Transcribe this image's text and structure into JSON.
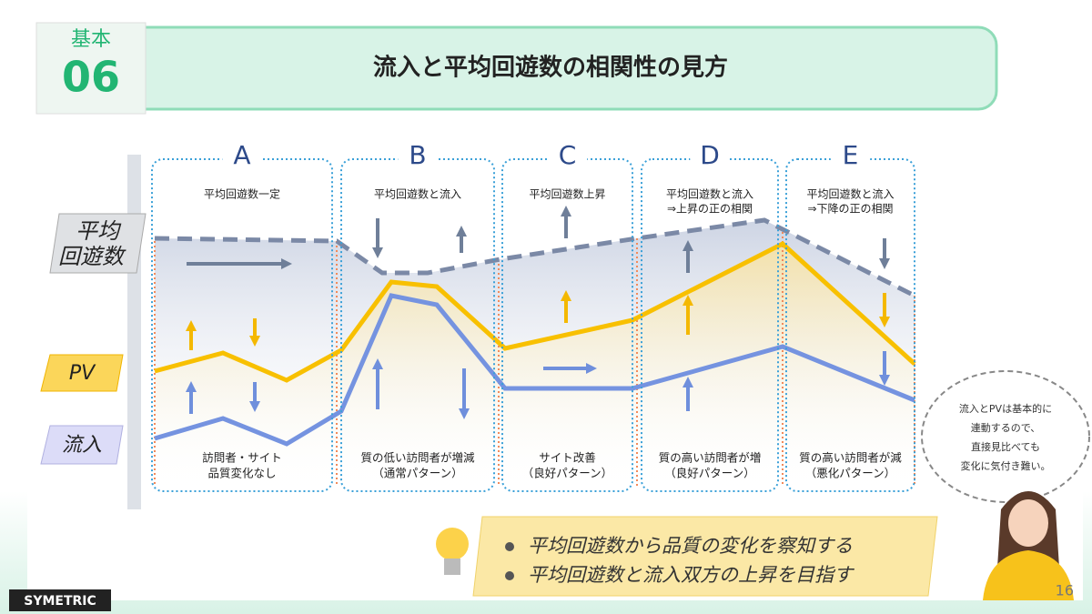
{
  "header": {
    "badge_top": "基本",
    "badge_number": "06",
    "title": "流入と平均回遊数の相関性の見方"
  },
  "axis_labels": [
    {
      "lines": [
        "平均",
        "回遊数"
      ]
    },
    {
      "lines": [
        "PV"
      ]
    },
    {
      "lines": [
        "流入"
      ]
    }
  ],
  "phases": [
    {
      "letter": "A",
      "top": [
        "平均回遊数一定"
      ],
      "bottom": [
        "訪問者・サイト",
        "品質変化なし"
      ]
    },
    {
      "letter": "B",
      "top": [
        "平均回遊数と流入"
      ],
      "bottom": [
        "質の低い訪問者が増減",
        "（通常パターン）"
      ]
    },
    {
      "letter": "C",
      "top": [
        "平均回遊数上昇"
      ],
      "bottom": [
        "サイト改善",
        "（良好パターン）"
      ]
    },
    {
      "letter": "D",
      "top": [
        "平均回遊数と流入",
        "⇒上昇の正の相関"
      ],
      "bottom": [
        "質の高い訪問者が増",
        "（良好パターン）"
      ]
    },
    {
      "letter": "E",
      "top": [
        "平均回遊数と流入",
        "⇒下降の正の相関"
      ],
      "bottom": [
        "質の高い訪問者が減",
        "（悪化パターン）"
      ]
    }
  ],
  "note": [
    "流入とPVは基本的に",
    "連動するので、",
    "直接見比べても",
    "変化に気付き難い。"
  ],
  "bullets": [
    "平均回遊数から品質の変化を察知する",
    "平均回遊数と流入双方の上昇を目指す"
  ],
  "footer": {
    "logo": "SYMETRIC",
    "page": "16"
  }
}
